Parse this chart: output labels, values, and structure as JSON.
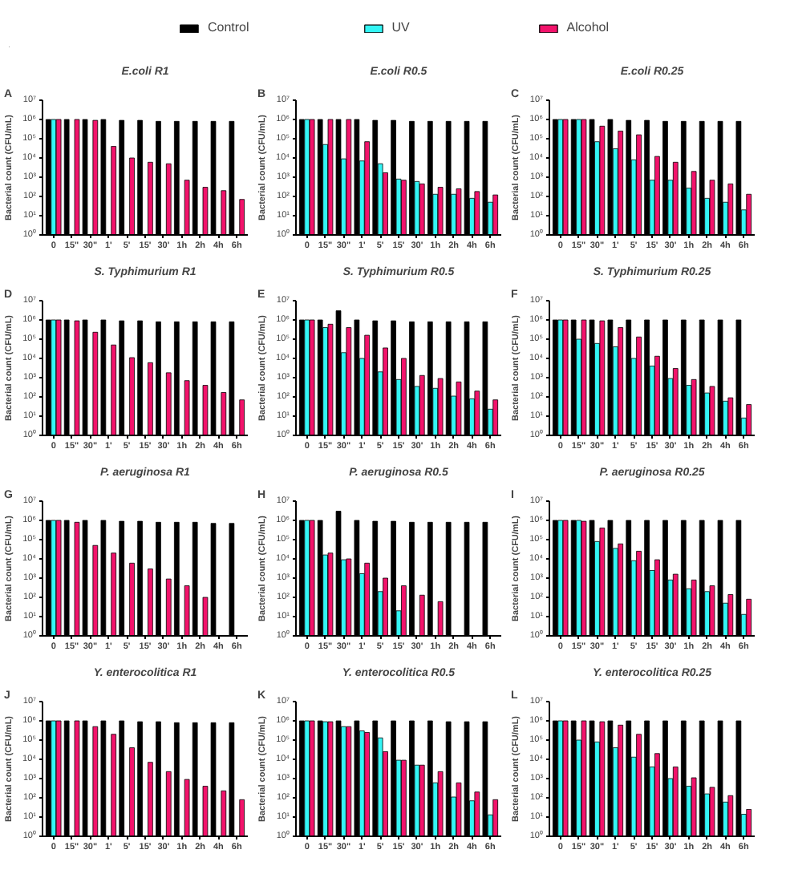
{
  "chart_data": [
    {
      "type": "bar",
      "title": "E.coli R1",
      "annotations": [
        "A"
      ],
      "ylabel": "Bacterial count (CFU/mL)",
      "legend": "top",
      "log": true,
      "ylim": [
        1,
        10000000
      ],
      "yticks": [
        {
          "value": 1,
          "label": "10⁰"
        },
        {
          "value": 10,
          "label": "10¹"
        },
        {
          "value": 100,
          "label": "10²"
        },
        {
          "value": 1000,
          "label": "10³"
        },
        {
          "value": 10000,
          "label": "10⁴"
        },
        {
          "value": 100000,
          "label": "10⁵"
        },
        {
          "value": 1000000,
          "label": "10⁶"
        },
        {
          "value": 10000000,
          "label": "10⁷"
        }
      ],
      "categories": [
        "0",
        "15\"",
        "30\"",
        "1'",
        "5'",
        "15'",
        "30'",
        "1h",
        "2h",
        "4h",
        "6h"
      ],
      "series": [
        {
          "name": "Control",
          "color": "#000000",
          "values": [
            1000000,
            1000000,
            1000000,
            1000000,
            900000,
            900000,
            800000,
            800000,
            800000,
            800000,
            800000
          ]
        },
        {
          "name": "UV",
          "color": "#33f5f5",
          "values": [
            1000000,
            null,
            null,
            null,
            null,
            null,
            null,
            null,
            null,
            null,
            null
          ]
        },
        {
          "name": "Alcohol",
          "color": "#f2136b",
          "values": [
            1000000,
            1000000,
            900000,
            40000,
            10000,
            6000,
            5000,
            700,
            300,
            200,
            70
          ]
        }
      ]
    },
    {
      "type": "bar",
      "title": "E.coli R0.5",
      "annotations": [
        "B"
      ],
      "ylabel": "Bacterial count (CFU/mL)",
      "log": true,
      "ylim": [
        1,
        10000000
      ],
      "yticks": [
        {
          "value": 1,
          "label": "10⁰"
        },
        {
          "value": 10,
          "label": "10¹"
        },
        {
          "value": 100,
          "label": "10²"
        },
        {
          "value": 1000,
          "label": "10³"
        },
        {
          "value": 10000,
          "label": "10⁴"
        },
        {
          "value": 100000,
          "label": "10⁵"
        },
        {
          "value": 1000000,
          "label": "10⁶"
        },
        {
          "value": 10000000,
          "label": "10⁷"
        }
      ],
      "categories": [
        "0",
        "15\"",
        "30\"",
        "1'",
        "5'",
        "15'",
        "30'",
        "1h",
        "2h",
        "4h",
        "6h"
      ],
      "series": [
        {
          "color": "#000000",
          "values": [
            1000000,
            1000000,
            1000000,
            1000000,
            900000,
            900000,
            800000,
            800000,
            800000,
            800000,
            800000
          ]
        },
        {
          "color": "#33f5f5",
          "values": [
            1000000,
            50000,
            9000,
            7000,
            5000,
            800,
            600,
            130,
            130,
            80,
            50
          ]
        },
        {
          "color": "#f2136b",
          "values": [
            1000000,
            1000000,
            1000000,
            70000,
            1700,
            700,
            450,
            300,
            250,
            180,
            120
          ]
        }
      ]
    },
    {
      "type": "bar",
      "title": "E.coli R0.25",
      "annotations": [
        "C"
      ],
      "ylabel": "Bacterial count (CFU/mL)",
      "log": true,
      "ylim": [
        1,
        10000000
      ],
      "yticks": [
        {
          "value": 1,
          "label": "10⁰"
        },
        {
          "value": 10,
          "label": "10¹"
        },
        {
          "value": 100,
          "label": "10²"
        },
        {
          "value": 1000,
          "label": "10³"
        },
        {
          "value": 10000,
          "label": "10⁴"
        },
        {
          "value": 100000,
          "label": "10⁵"
        },
        {
          "value": 1000000,
          "label": "10⁶"
        },
        {
          "value": 10000000,
          "label": "10⁷"
        }
      ],
      "categories": [
        "0",
        "15\"",
        "30\"",
        "1'",
        "5'",
        "15'",
        "30'",
        "1h",
        "2h",
        "4h",
        "6h"
      ],
      "series": [
        {
          "color": "#000000",
          "values": [
            1000000,
            1000000,
            1000000,
            1000000,
            900000,
            900000,
            800000,
            800000,
            800000,
            800000,
            800000
          ]
        },
        {
          "color": "#33f5f5",
          "values": [
            1000000,
            1000000,
            70000,
            30000,
            8000,
            700,
            700,
            270,
            80,
            50,
            20
          ]
        },
        {
          "color": "#f2136b",
          "values": [
            1000000,
            1000000,
            450000,
            250000,
            160000,
            12000,
            6000,
            2000,
            700,
            450,
            130
          ]
        }
      ]
    },
    {
      "type": "bar",
      "title": "S. Typhimurium R1",
      "annotations": [
        "D"
      ],
      "ylabel": "Bacterial count (CFU/mL)",
      "log": true,
      "ylim": [
        1,
        10000000
      ],
      "yticks": [
        {
          "value": 1,
          "label": "10⁰"
        },
        {
          "value": 10,
          "label": "10¹"
        },
        {
          "value": 100,
          "label": "10²"
        },
        {
          "value": 1000,
          "label": "10³"
        },
        {
          "value": 10000,
          "label": "10⁴"
        },
        {
          "value": 100000,
          "label": "10⁵"
        },
        {
          "value": 1000000,
          "label": "10⁶"
        },
        {
          "value": 10000000,
          "label": "10⁷"
        }
      ],
      "categories": [
        "0",
        "15\"",
        "30\"",
        "1'",
        "5'",
        "15'",
        "30'",
        "1h",
        "2h",
        "4h",
        "6h"
      ],
      "series": [
        {
          "color": "#000000",
          "values": [
            1000000,
            1000000,
            1000000,
            1000000,
            900000,
            900000,
            800000,
            800000,
            800000,
            800000,
            800000
          ]
        },
        {
          "color": "#33f5f5",
          "values": [
            1000000,
            null,
            null,
            null,
            null,
            null,
            null,
            null,
            null,
            null,
            null
          ]
        },
        {
          "color": "#f2136b",
          "values": [
            1000000,
            900000,
            230000,
            50000,
            11000,
            6000,
            1800,
            700,
            400,
            170,
            70
          ]
        }
      ]
    },
    {
      "type": "bar",
      "title": "S. Typhimurium R0.5",
      "annotations": [
        "E"
      ],
      "ylabel": "Bacterial count (CFU/mL)",
      "log": true,
      "ylim": [
        1,
        10000000
      ],
      "yticks": [
        {
          "value": 1,
          "label": "10⁰"
        },
        {
          "value": 10,
          "label": "10¹"
        },
        {
          "value": 100,
          "label": "10²"
        },
        {
          "value": 1000,
          "label": "10³"
        },
        {
          "value": 10000,
          "label": "10⁴"
        },
        {
          "value": 100000,
          "label": "10⁵"
        },
        {
          "value": 1000000,
          "label": "10⁶"
        },
        {
          "value": 10000000,
          "label": "10⁷"
        }
      ],
      "categories": [
        "0",
        "15\"",
        "30\"",
        "1'",
        "5'",
        "15'",
        "30'",
        "1h",
        "2h",
        "4h",
        "6h"
      ],
      "series": [
        {
          "color": "#000000",
          "values": [
            1000000,
            1000000,
            3000000,
            1000000,
            900000,
            900000,
            800000,
            800000,
            800000,
            800000,
            800000
          ]
        },
        {
          "color": "#33f5f5",
          "values": [
            1000000,
            400000,
            20000,
            10000,
            2000,
            800,
            350,
            280,
            110,
            80,
            23
          ]
        },
        {
          "color": "#f2136b",
          "values": [
            1000000,
            600000,
            400000,
            160000,
            35000,
            10000,
            1300,
            900,
            600,
            200,
            70
          ]
        }
      ]
    },
    {
      "type": "bar",
      "title": "S. Typhimurium R0.25",
      "annotations": [
        "F"
      ],
      "ylabel": "Bacterial count (CFU/mL)",
      "log": true,
      "ylim": [
        1,
        10000000
      ],
      "yticks": [
        {
          "value": 1,
          "label": "10⁰"
        },
        {
          "value": 10,
          "label": "10¹"
        },
        {
          "value": 100,
          "label": "10²"
        },
        {
          "value": 1000,
          "label": "10³"
        },
        {
          "value": 10000,
          "label": "10⁴"
        },
        {
          "value": 100000,
          "label": "10⁵"
        },
        {
          "value": 1000000,
          "label": "10⁶"
        },
        {
          "value": 10000000,
          "label": "10⁷"
        }
      ],
      "categories": [
        "0",
        "15\"",
        "30\"",
        "1'",
        "5'",
        "15'",
        "30'",
        "1h",
        "2h",
        "4h",
        "6h"
      ],
      "series": [
        {
          "color": "#000000",
          "values": [
            1000000,
            1000000,
            1000000,
            1000000,
            1000000,
            1000000,
            1000000,
            1000000,
            1000000,
            1000000,
            1000000
          ]
        },
        {
          "color": "#33f5f5",
          "values": [
            1000000,
            100000,
            60000,
            40000,
            10000,
            4000,
            900,
            400,
            160,
            60,
            8
          ]
        },
        {
          "color": "#f2136b",
          "values": [
            1000000,
            1000000,
            900000,
            400000,
            130000,
            13000,
            3000,
            800,
            350,
            90,
            40
          ]
        }
      ]
    },
    {
      "type": "bar",
      "title": "P. aeruginosa R1",
      "annotations": [
        "G"
      ],
      "ylabel": "Bacterial count (CFU/mL)",
      "log": true,
      "ylim": [
        1,
        10000000
      ],
      "yticks": [
        {
          "value": 1,
          "label": "10⁰"
        },
        {
          "value": 10,
          "label": "10¹"
        },
        {
          "value": 100,
          "label": "10²"
        },
        {
          "value": 1000,
          "label": "10³"
        },
        {
          "value": 10000,
          "label": "10⁴"
        },
        {
          "value": 100000,
          "label": "10⁵"
        },
        {
          "value": 1000000,
          "label": "10⁶"
        },
        {
          "value": 10000000,
          "label": "10⁷"
        }
      ],
      "categories": [
        "0",
        "15\"",
        "30\"",
        "1'",
        "5'",
        "15'",
        "30'",
        "1h",
        "2h",
        "4h",
        "6h"
      ],
      "series": [
        {
          "color": "#000000",
          "values": [
            1000000,
            1000000,
            1000000,
            1000000,
            900000,
            900000,
            800000,
            800000,
            800000,
            700000,
            700000
          ]
        },
        {
          "color": "#33f5f5",
          "values": [
            1000000,
            null,
            null,
            null,
            null,
            null,
            null,
            null,
            null,
            null,
            null
          ]
        },
        {
          "color": "#f2136b",
          "values": [
            1000000,
            800000,
            50000,
            20000,
            6000,
            3000,
            900,
            400,
            100,
            null,
            null
          ]
        }
      ]
    },
    {
      "type": "bar",
      "title": "P. aeruginosa R0.5",
      "annotations": [
        "H"
      ],
      "ylabel": "Bacterial count (CFU/mL)",
      "log": true,
      "ylim": [
        1,
        10000000
      ],
      "yticks": [
        {
          "value": 1,
          "label": "10⁰"
        },
        {
          "value": 10,
          "label": "10¹"
        },
        {
          "value": 100,
          "label": "10²"
        },
        {
          "value": 1000,
          "label": "10³"
        },
        {
          "value": 10000,
          "label": "10⁴"
        },
        {
          "value": 100000,
          "label": "10⁵"
        },
        {
          "value": 1000000,
          "label": "10⁶"
        },
        {
          "value": 10000000,
          "label": "10⁷"
        }
      ],
      "categories": [
        "0",
        "15\"",
        "30\"",
        "1'",
        "5'",
        "15'",
        "30'",
        "1h",
        "2h",
        "4h",
        "6h"
      ],
      "series": [
        {
          "color": "#000000",
          "values": [
            1000000,
            1000000,
            3000000,
            1000000,
            900000,
            900000,
            800000,
            800000,
            800000,
            800000,
            800000
          ]
        },
        {
          "color": "#33f5f5",
          "values": [
            1000000,
            16000,
            9000,
            1700,
            200,
            20,
            null,
            null,
            null,
            null,
            null
          ]
        },
        {
          "color": "#f2136b",
          "values": [
            1000000,
            20000,
            10000,
            6000,
            1000,
            400,
            130,
            60,
            null,
            null,
            null
          ]
        }
      ]
    },
    {
      "type": "bar",
      "title": "P. aeruginosa R0.25",
      "annotations": [
        "I"
      ],
      "ylabel": "Bacterial count (CFU/mL)",
      "log": true,
      "ylim": [
        1,
        10000000
      ],
      "yticks": [
        {
          "value": 1,
          "label": "10⁰"
        },
        {
          "value": 10,
          "label": "10¹"
        },
        {
          "value": 100,
          "label": "10²"
        },
        {
          "value": 1000,
          "label": "10³"
        },
        {
          "value": 10000,
          "label": "10⁴"
        },
        {
          "value": 100000,
          "label": "10⁵"
        },
        {
          "value": 1000000,
          "label": "10⁶"
        },
        {
          "value": 10000000,
          "label": "10⁷"
        }
      ],
      "categories": [
        "0",
        "15\"",
        "30\"",
        "1'",
        "5'",
        "15'",
        "30'",
        "1h",
        "2h",
        "4h",
        "6h"
      ],
      "series": [
        {
          "color": "#000000",
          "values": [
            1000000,
            1000000,
            1000000,
            1000000,
            1000000,
            1000000,
            1000000,
            1000000,
            1000000,
            1000000,
            1000000
          ]
        },
        {
          "color": "#33f5f5",
          "values": [
            1000000,
            1000000,
            80000,
            35000,
            8000,
            2500,
            800,
            280,
            200,
            50,
            13
          ]
        },
        {
          "color": "#f2136b",
          "values": [
            1000000,
            900000,
            400000,
            60000,
            25000,
            9000,
            1600,
            800,
            400,
            140,
            80
          ]
        }
      ]
    },
    {
      "type": "bar",
      "title": "Y. enterocolitica R1",
      "annotations": [
        "J"
      ],
      "ylabel": "Bacterial count (CFU/mL)",
      "log": true,
      "ylim": [
        1,
        10000000
      ],
      "yticks": [
        {
          "value": 1,
          "label": "10⁰"
        },
        {
          "value": 10,
          "label": "10¹"
        },
        {
          "value": 100,
          "label": "10²"
        },
        {
          "value": 1000,
          "label": "10³"
        },
        {
          "value": 10000,
          "label": "10⁴"
        },
        {
          "value": 100000,
          "label": "10⁵"
        },
        {
          "value": 1000000,
          "label": "10⁶"
        },
        {
          "value": 10000000,
          "label": "10⁷"
        }
      ],
      "categories": [
        "0",
        "15\"",
        "30\"",
        "1'",
        "5'",
        "15'",
        "30'",
        "1h",
        "2h",
        "4h",
        "6h"
      ],
      "series": [
        {
          "color": "#000000",
          "values": [
            1000000,
            1000000,
            1000000,
            1000000,
            1000000,
            900000,
            900000,
            800000,
            800000,
            800000,
            800000
          ]
        },
        {
          "color": "#33f5f5",
          "values": [
            1000000,
            null,
            null,
            null,
            null,
            null,
            null,
            null,
            null,
            null,
            null
          ]
        },
        {
          "color": "#f2136b",
          "values": [
            1000000,
            1000000,
            500000,
            200000,
            40000,
            7000,
            2300,
            900,
            400,
            230,
            80
          ]
        }
      ]
    },
    {
      "type": "bar",
      "title": "Y. enterocolitica R0.5",
      "annotations": [
        "K"
      ],
      "ylabel": "Bacterial count (CFU/mL)",
      "log": true,
      "ylim": [
        1,
        10000000
      ],
      "yticks": [
        {
          "value": 1,
          "label": "10⁰"
        },
        {
          "value": 10,
          "label": "10¹"
        },
        {
          "value": 100,
          "label": "10²"
        },
        {
          "value": 1000,
          "label": "10³"
        },
        {
          "value": 10000,
          "label": "10⁴"
        },
        {
          "value": 100000,
          "label": "10⁵"
        },
        {
          "value": 1000000,
          "label": "10⁶"
        },
        {
          "value": 10000000,
          "label": "10⁷"
        }
      ],
      "categories": [
        "0",
        "15\"",
        "30\"",
        "1'",
        "5'",
        "15'",
        "30'",
        "1h",
        "2h",
        "4h",
        "6h"
      ],
      "series": [
        {
          "color": "#000000",
          "values": [
            1000000,
            1000000,
            1000000,
            1000000,
            1000000,
            1000000,
            1000000,
            1000000,
            900000,
            900000,
            900000
          ]
        },
        {
          "color": "#33f5f5",
          "values": [
            1000000,
            900000,
            500000,
            300000,
            130000,
            9000,
            5000,
            600,
            110,
            70,
            13
          ]
        },
        {
          "color": "#f2136b",
          "values": [
            1000000,
            900000,
            500000,
            250000,
            25000,
            9000,
            5000,
            2300,
            600,
            200,
            80
          ]
        }
      ]
    },
    {
      "type": "bar",
      "title": "Y. enterocolitica R0.25",
      "annotations": [
        "L"
      ],
      "ylabel": "Bacterial count (CFU/mL)",
      "log": true,
      "ylim": [
        1,
        10000000
      ],
      "yticks": [
        {
          "value": 1,
          "label": "10⁰"
        },
        {
          "value": 10,
          "label": "10¹"
        },
        {
          "value": 100,
          "label": "10²"
        },
        {
          "value": 1000,
          "label": "10³"
        },
        {
          "value": 10000,
          "label": "10⁴"
        },
        {
          "value": 100000,
          "label": "10⁵"
        },
        {
          "value": 1000000,
          "label": "10⁶"
        },
        {
          "value": 10000000,
          "label": "10⁷"
        }
      ],
      "categories": [
        "0",
        "15\"",
        "30\"",
        "1'",
        "5'",
        "15'",
        "30'",
        "1h",
        "2h",
        "4h",
        "6h"
      ],
      "series": [
        {
          "color": "#000000",
          "values": [
            1000000,
            1000000,
            1000000,
            1000000,
            1000000,
            1000000,
            1000000,
            1000000,
            1000000,
            1000000,
            1000000
          ]
        },
        {
          "color": "#33f5f5",
          "values": [
            1000000,
            100000,
            80000,
            40000,
            13000,
            4000,
            1000,
            400,
            160,
            60,
            14
          ]
        },
        {
          "color": "#f2136b",
          "values": [
            1000000,
            1000000,
            900000,
            600000,
            200000,
            20000,
            4000,
            1100,
            350,
            130,
            25
          ]
        }
      ]
    }
  ]
}
